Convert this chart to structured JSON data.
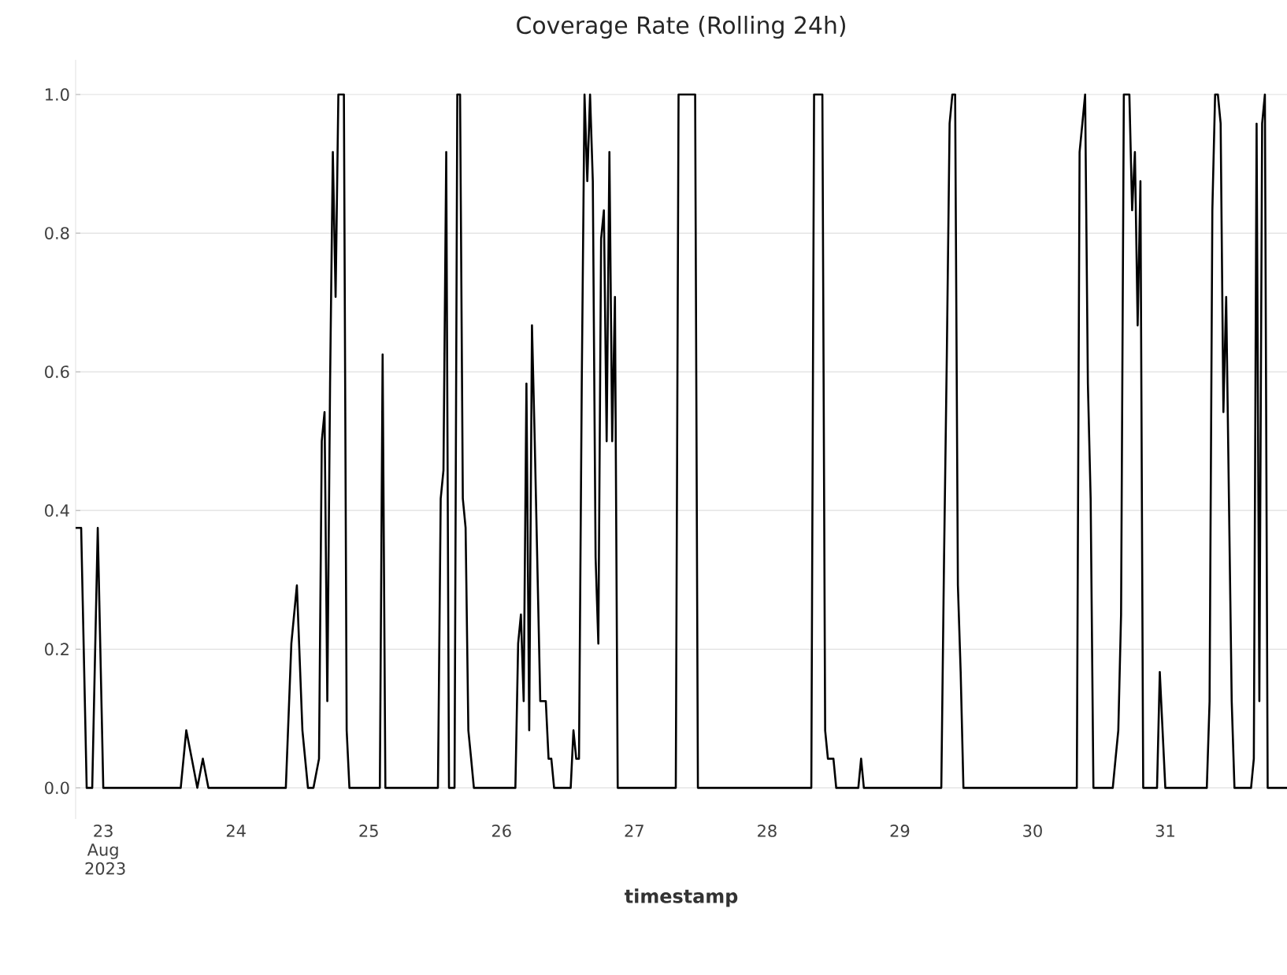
{
  "chart_data": {
    "type": "line",
    "title": "Coverage Rate (Rolling 24h)",
    "xlabel": "timestamp",
    "color": "#000000",
    "grid": "y",
    "xlim": [
      "2023-08-22T19:00",
      "2023-08-31T22:00"
    ],
    "ylim": [
      -0.045,
      1.05
    ],
    "xticks": [
      {
        "value": "2023-08-23",
        "label": "23 Aug 2023"
      },
      {
        "value": "2023-08-24",
        "label": "24"
      },
      {
        "value": "2023-08-25",
        "label": "25"
      },
      {
        "value": "2023-08-26",
        "label": "26"
      },
      {
        "value": "2023-08-27",
        "label": "27"
      },
      {
        "value": "2023-08-28",
        "label": "28"
      },
      {
        "value": "2023-08-29",
        "label": "29"
      },
      {
        "value": "2023-08-30",
        "label": "30"
      },
      {
        "value": "2023-08-31",
        "label": "31"
      }
    ],
    "yticks": [
      {
        "value": 0,
        "label": "0.0"
      },
      {
        "value": 0.2,
        "label": "0.2"
      },
      {
        "value": 0.4,
        "label": "0.4"
      },
      {
        "value": 0.6,
        "label": "0.6"
      },
      {
        "value": 0.8,
        "label": "0.8"
      },
      {
        "value": 1.0,
        "label": "1.0"
      }
    ],
    "x": [
      "2023-08-22T19:00",
      "2023-08-22T20:00",
      "2023-08-22T21:00",
      "2023-08-22T22:00",
      "2023-08-22T23:00",
      "2023-08-23T00:00",
      "2023-08-23T14:00",
      "2023-08-23T15:00",
      "2023-08-23T16:00",
      "2023-08-23T17:00",
      "2023-08-23T18:00",
      "2023-08-23T19:00",
      "2023-08-24T09:00",
      "2023-08-24T10:00",
      "2023-08-24T11:00",
      "2023-08-24T12:00",
      "2023-08-24T13:00",
      "2023-08-24T14:00",
      "2023-08-24T15:00",
      "2023-08-24T15:30",
      "2023-08-24T16:00",
      "2023-08-24T16:30",
      "2023-08-24T17:00",
      "2023-08-24T17:30",
      "2023-08-24T18:00",
      "2023-08-24T18:30",
      "2023-08-24T19:30",
      "2023-08-24T20:00",
      "2023-08-24T20:30",
      "2023-08-25T02:00",
      "2023-08-25T02:30",
      "2023-08-25T03:00",
      "2023-08-25T12:30",
      "2023-08-25T13:00",
      "2023-08-25T13:30",
      "2023-08-25T14:00",
      "2023-08-25T14:30",
      "2023-08-25T15:30",
      "2023-08-25T16:00",
      "2023-08-25T16:30",
      "2023-08-25T17:00",
      "2023-08-25T17:30",
      "2023-08-25T18:00",
      "2023-08-25T18:30",
      "2023-08-25T19:00",
      "2023-08-26T02:30",
      "2023-08-26T03:00",
      "2023-08-26T03:30",
      "2023-08-26T04:00",
      "2023-08-26T04:30",
      "2023-08-26T05:00",
      "2023-08-26T05:30",
      "2023-08-26T06:00",
      "2023-08-26T07:00",
      "2023-08-26T08:00",
      "2023-08-26T08:30",
      "2023-08-26T09:00",
      "2023-08-26T09:30",
      "2023-08-26T12:30",
      "2023-08-26T13:00",
      "2023-08-26T13:30",
      "2023-08-26T14:00",
      "2023-08-26T14:30",
      "2023-08-26T15:00",
      "2023-08-26T15:30",
      "2023-08-26T16:00",
      "2023-08-26T16:30",
      "2023-08-26T17:00",
      "2023-08-26T17:30",
      "2023-08-26T18:00",
      "2023-08-26T18:30",
      "2023-08-26T19:00",
      "2023-08-26T19:30",
      "2023-08-26T20:00",
      "2023-08-26T20:30",
      "2023-08-26T21:00",
      "2023-08-27T07:30",
      "2023-08-27T08:00",
      "2023-08-27T11:00",
      "2023-08-27T11:30",
      "2023-08-28T08:00",
      "2023-08-28T08:30",
      "2023-08-28T10:00",
      "2023-08-28T10:30",
      "2023-08-28T11:00",
      "2023-08-28T12:00",
      "2023-08-28T12:30",
      "2023-08-28T16:30",
      "2023-08-28T17:00",
      "2023-08-28T17:30",
      "2023-08-29T07:30",
      "2023-08-29T08:00",
      "2023-08-29T08:30",
      "2023-08-29T09:00",
      "2023-08-29T09:30",
      "2023-08-29T10:00",
      "2023-08-29T10:30",
      "2023-08-29T11:00",
      "2023-08-29T11:30",
      "2023-08-30T08:00",
      "2023-08-30T08:30",
      "2023-08-30T09:00",
      "2023-08-30T09:30",
      "2023-08-30T10:00",
      "2023-08-30T10:30",
      "2023-08-30T11:00",
      "2023-08-30T14:30",
      "2023-08-30T15:00",
      "2023-08-30T15:30",
      "2023-08-30T16:00",
      "2023-08-30T16:30",
      "2023-08-30T17:30",
      "2023-08-30T18:00",
      "2023-08-30T18:30",
      "2023-08-30T19:00",
      "2023-08-30T19:30",
      "2023-08-30T20:00",
      "2023-08-30T22:30",
      "2023-08-30T23:00",
      "2023-08-30T23:30",
      "2023-08-31T00:00",
      "2023-08-31T07:30",
      "2023-08-31T08:00",
      "2023-08-31T08:30",
      "2023-08-31T09:00",
      "2023-08-31T09:30",
      "2023-08-31T10:00",
      "2023-08-31T10:30",
      "2023-08-31T11:00",
      "2023-08-31T11:30",
      "2023-08-31T12:00",
      "2023-08-31T12:30",
      "2023-08-31T15:30",
      "2023-08-31T16:00",
      "2023-08-31T16:30",
      "2023-08-31T17:00",
      "2023-08-31T17:30",
      "2023-08-31T18:00",
      "2023-08-31T18:30",
      "2023-08-31T22:00"
    ],
    "values": [
      0.375,
      0.375,
      0,
      0,
      0.375,
      0,
      0,
      0.083,
      0.042,
      0,
      0.042,
      0,
      0,
      0.208,
      0.292,
      0.083,
      0,
      0,
      0.042,
      0.5,
      0.542,
      0.125,
      0.583,
      0.917,
      0.708,
      1.0,
      1.0,
      0.083,
      0,
      0,
      0.625,
      0,
      0,
      0.417,
      0.458,
      0.917,
      0,
      0,
      1.0,
      1.0,
      0.417,
      0.375,
      0.083,
      0.042,
      0,
      0,
      0.208,
      0.25,
      0.125,
      0.583,
      0.083,
      0.667,
      0.5,
      0.125,
      0.125,
      0.042,
      0.042,
      0,
      0,
      0.083,
      0.042,
      0.042,
      0.583,
      1.0,
      0.875,
      1.0,
      0.875,
      0.333,
      0.208,
      0.792,
      0.833,
      0.5,
      0.917,
      0.5,
      0.708,
      0,
      0,
      1.0,
      1.0,
      0,
      0,
      1.0,
      1.0,
      0.083,
      0.042,
      0.042,
      0,
      0,
      0.042,
      0,
      0,
      0.333,
      0.625,
      0.958,
      1.0,
      1.0,
      0.292,
      0.167,
      0,
      0,
      0.917,
      0.958,
      1.0,
      0.583,
      0.417,
      0,
      0,
      0.042,
      0.083,
      0.25,
      1.0,
      1.0,
      0.833,
      0.917,
      0.667,
      0.875,
      0,
      0,
      0.167,
      0.083,
      0,
      0,
      0.125,
      0.833,
      1.0,
      1.0,
      0.958,
      0.542,
      0.708,
      0.417,
      0.125,
      0,
      0,
      0.042,
      0.958,
      0.125,
      0.958,
      1.0,
      0,
      0
    ]
  }
}
